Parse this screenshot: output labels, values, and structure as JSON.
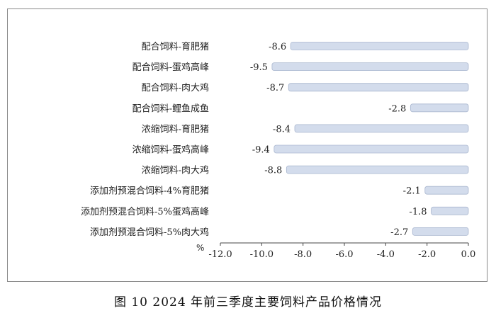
{
  "chart_data": {
    "type": "bar",
    "orientation": "horizontal",
    "caption": "图 10   2024 年前三季度主要饲料产品价格情况",
    "unit_label": "%",
    "categories": [
      "配合饲料-育肥猪",
      "配合饲料-蛋鸡高峰",
      "配合饲料-肉大鸡",
      "配合饲料-鲤鱼成鱼",
      "浓缩饲料-育肥猪",
      "浓缩饲料-蛋鸡高峰",
      "浓缩饲料-肉大鸡",
      "添加剂预混合饲料-4%育肥猪",
      "添加剂预混合饲料-5%蛋鸡高峰",
      "添加剂预混合饲料-5%肉大鸡"
    ],
    "values": [
      -8.6,
      -9.5,
      -8.7,
      -2.8,
      -8.4,
      -9.4,
      -8.8,
      -2.1,
      -1.8,
      -2.7
    ],
    "value_labels": [
      "-8.6",
      "-9.5",
      "-8.7",
      "-2.8",
      "-8.4",
      "-9.4",
      "-8.8",
      "-2.1",
      "-1.8",
      "-2.7"
    ],
    "xlim": [
      -12.0,
      0.0
    ],
    "xticks": [
      "-12.0",
      "-10.0",
      "-8.0",
      "-6.0",
      "-4.0",
      "-2.0",
      "0.0"
    ],
    "bar_color": "#d3dcec",
    "bar_edge_color": "#aab7cf",
    "grid": false,
    "legend": "none"
  }
}
